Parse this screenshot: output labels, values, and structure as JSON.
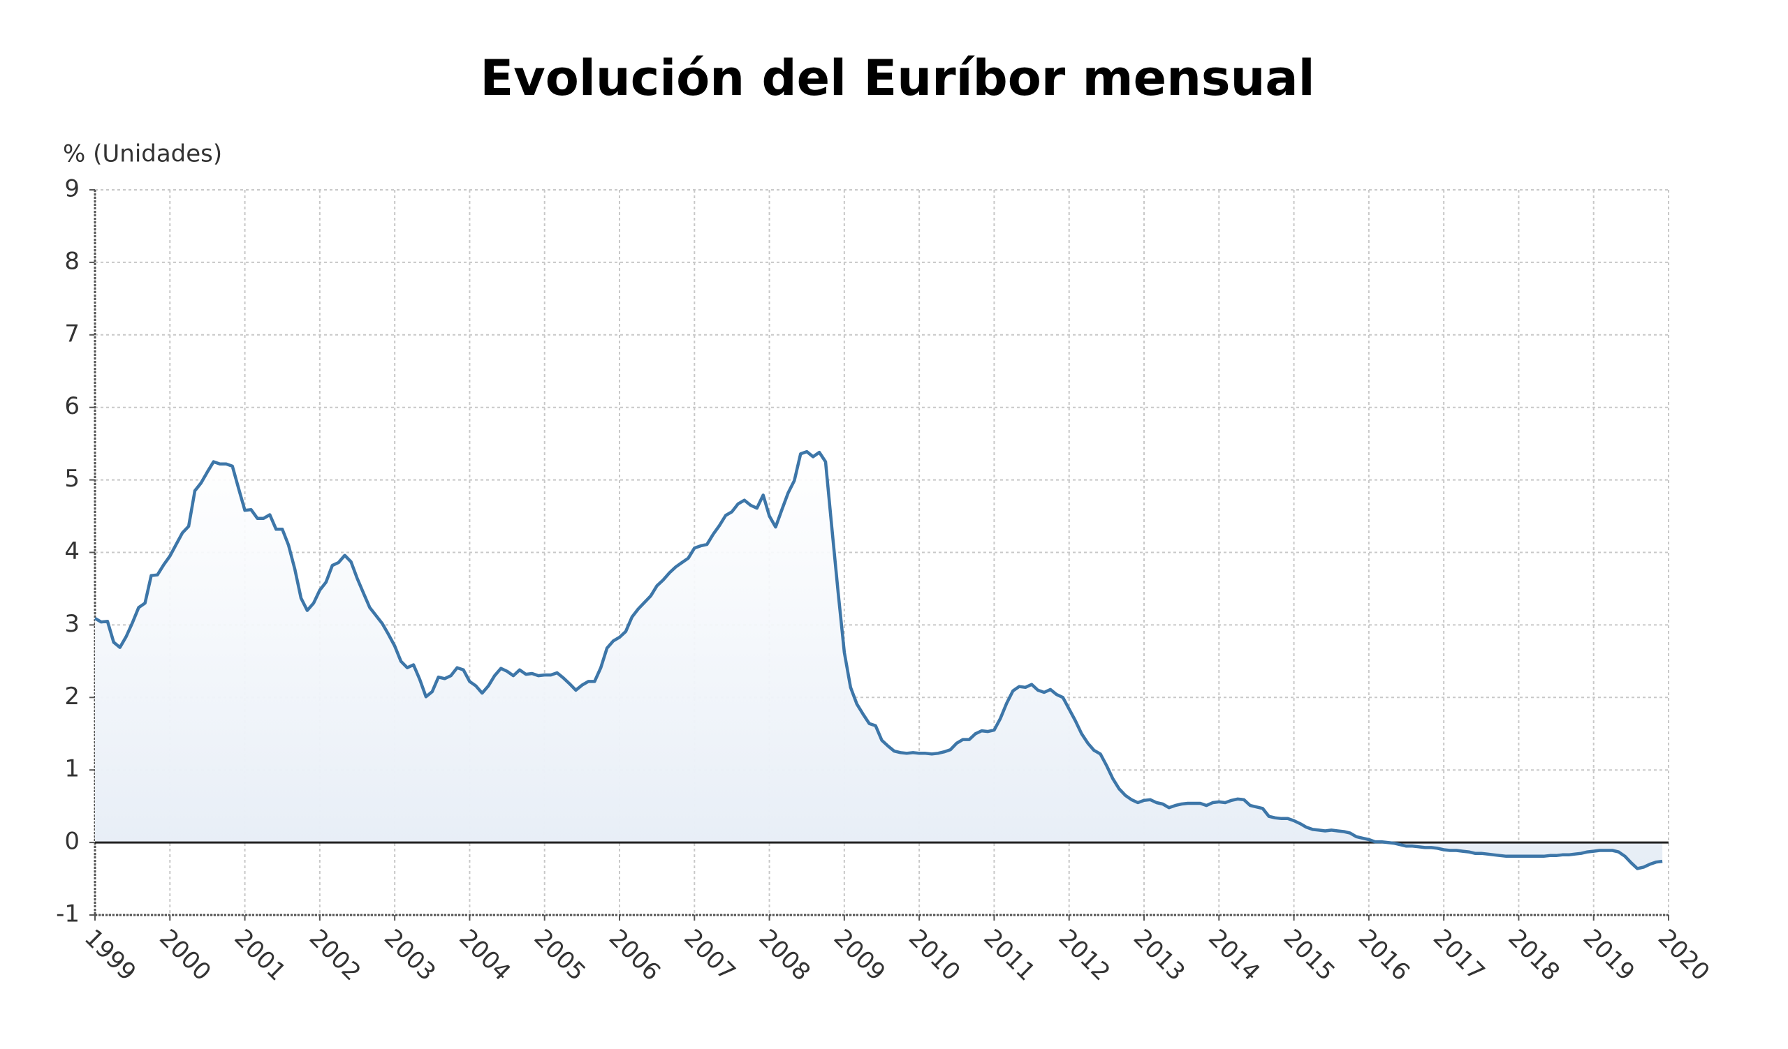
{
  "chart_data": {
    "type": "line",
    "title": "Evolución del Euríbor mensual",
    "y_label": "% (Unidades)",
    "color": "#3d76a8",
    "fill": true,
    "grid": true,
    "xlim": [
      1999,
      2020
    ],
    "xticks": [
      1999,
      2000,
      2001,
      2002,
      2003,
      2004,
      2005,
      2006,
      2007,
      2008,
      2009,
      2010,
      2011,
      2012,
      2013,
      2014,
      2015,
      2016,
      2017,
      2018,
      2019,
      2020
    ],
    "ylim": [
      -1,
      9
    ],
    "yticks": [
      -1,
      0,
      1,
      2,
      3,
      4,
      5,
      6,
      7,
      8,
      9
    ],
    "x": [
      1999,
      1999.083,
      1999.167,
      1999.25,
      1999.333,
      1999.417,
      1999.5,
      1999.583,
      1999.667,
      1999.75,
      1999.833,
      1999.917,
      2000,
      2000.083,
      2000.167,
      2000.25,
      2000.333,
      2000.417,
      2000.5,
      2000.583,
      2000.667,
      2000.75,
      2000.833,
      2000.917,
      2001,
      2001.083,
      2001.167,
      2001.25,
      2001.333,
      2001.417,
      2001.5,
      2001.583,
      2001.667,
      2001.75,
      2001.833,
      2001.917,
      2002,
      2002.083,
      2002.167,
      2002.25,
      2002.333,
      2002.417,
      2002.5,
      2002.583,
      2002.667,
      2002.75,
      2002.833,
      2002.917,
      2003,
      2003.083,
      2003.167,
      2003.25,
      2003.333,
      2003.417,
      2003.5,
      2003.583,
      2003.667,
      2003.75,
      2003.833,
      2003.917,
      2004,
      2004.083,
      2004.167,
      2004.25,
      2004.333,
      2004.417,
      2004.5,
      2004.583,
      2004.667,
      2004.75,
      2004.833,
      2004.917,
      2005,
      2005.083,
      2005.167,
      2005.25,
      2005.333,
      2005.417,
      2005.5,
      2005.583,
      2005.667,
      2005.75,
      2005.833,
      2005.917,
      2006,
      2006.083,
      2006.167,
      2006.25,
      2006.333,
      2006.417,
      2006.5,
      2006.583,
      2006.667,
      2006.75,
      2006.833,
      2006.917,
      2007,
      2007.083,
      2007.167,
      2007.25,
      2007.333,
      2007.417,
      2007.5,
      2007.583,
      2007.667,
      2007.75,
      2007.833,
      2007.917,
      2008,
      2008.083,
      2008.167,
      2008.25,
      2008.333,
      2008.417,
      2008.5,
      2008.583,
      2008.667,
      2008.75,
      2008.833,
      2008.917,
      2009,
      2009.083,
      2009.167,
      2009.25,
      2009.333,
      2009.417,
      2009.5,
      2009.583,
      2009.667,
      2009.75,
      2009.833,
      2009.917,
      2010,
      2010.083,
      2010.167,
      2010.25,
      2010.333,
      2010.417,
      2010.5,
      2010.583,
      2010.667,
      2010.75,
      2010.833,
      2010.917,
      2011,
      2011.083,
      2011.167,
      2011.25,
      2011.333,
      2011.417,
      2011.5,
      2011.583,
      2011.667,
      2011.75,
      2011.833,
      2011.917,
      2012,
      2012.083,
      2012.167,
      2012.25,
      2012.333,
      2012.417,
      2012.5,
      2012.583,
      2012.667,
      2012.75,
      2012.833,
      2012.917,
      2013,
      2013.083,
      2013.167,
      2013.25,
      2013.333,
      2013.417,
      2013.5,
      2013.583,
      2013.667,
      2013.75,
      2013.833,
      2013.917,
      2014,
      2014.083,
      2014.167,
      2014.25,
      2014.333,
      2014.417,
      2014.5,
      2014.583,
      2014.667,
      2014.75,
      2014.833,
      2014.917,
      2015,
      2015.083,
      2015.167,
      2015.25,
      2015.333,
      2015.417,
      2015.5,
      2015.583,
      2015.667,
      2015.75,
      2015.833,
      2015.917,
      2016,
      2016.083,
      2016.167,
      2016.25,
      2016.333,
      2016.417,
      2016.5,
      2016.583,
      2016.667,
      2016.75,
      2016.833,
      2016.917,
      2017,
      2017.083,
      2017.167,
      2017.25,
      2017.333,
      2017.417,
      2017.5,
      2017.583,
      2017.667,
      2017.75,
      2017.833,
      2017.917,
      2018,
      2018.083,
      2018.167,
      2018.25,
      2018.333,
      2018.417,
      2018.5,
      2018.583,
      2018.667,
      2018.75,
      2018.833,
      2018.917,
      2019,
      2019.083,
      2019.167,
      2019.25,
      2019.333,
      2019.417,
      2019.5,
      2019.583,
      2019.667,
      2019.75,
      2019.833,
      2019.917
    ],
    "values": [
      3.09,
      3.04,
      3.05,
      2.76,
      2.69,
      2.84,
      3.03,
      3.24,
      3.3,
      3.68,
      3.69,
      3.83,
      3.95,
      4.11,
      4.27,
      4.36,
      4.85,
      4.96,
      5.11,
      5.25,
      5.22,
      5.22,
      5.19,
      4.88,
      4.58,
      4.59,
      4.47,
      4.47,
      4.52,
      4.32,
      4.32,
      4.1,
      3.77,
      3.37,
      3.2,
      3.3,
      3.48,
      3.59,
      3.82,
      3.86,
      3.96,
      3.87,
      3.64,
      3.44,
      3.24,
      3.13,
      3.02,
      2.87,
      2.71,
      2.5,
      2.41,
      2.45,
      2.25,
      2.01,
      2.08,
      2.28,
      2.26,
      2.3,
      2.41,
      2.38,
      2.22,
      2.16,
      2.06,
      2.16,
      2.3,
      2.4,
      2.36,
      2.3,
      2.38,
      2.32,
      2.33,
      2.3,
      2.31,
      2.31,
      2.34,
      2.27,
      2.19,
      2.1,
      2.17,
      2.22,
      2.22,
      2.41,
      2.68,
      2.78,
      2.83,
      2.91,
      3.11,
      3.22,
      3.31,
      3.4,
      3.54,
      3.62,
      3.72,
      3.8,
      3.86,
      3.92,
      4.06,
      4.09,
      4.11,
      4.25,
      4.37,
      4.51,
      4.56,
      4.67,
      4.72,
      4.65,
      4.61,
      4.79,
      4.5,
      4.35,
      4.59,
      4.82,
      4.99,
      5.36,
      5.39,
      5.32,
      5.38,
      5.25,
      4.35,
      3.45,
      2.62,
      2.14,
      1.91,
      1.77,
      1.64,
      1.61,
      1.41,
      1.33,
      1.26,
      1.24,
      1.23,
      1.24,
      1.23,
      1.23,
      1.22,
      1.23,
      1.25,
      1.28,
      1.37,
      1.42,
      1.42,
      1.5,
      1.54,
      1.53,
      1.55,
      1.71,
      1.92,
      2.09,
      2.15,
      2.14,
      2.18,
      2.1,
      2.07,
      2.11,
      2.04,
      2.0,
      1.84,
      1.68,
      1.5,
      1.37,
      1.27,
      1.22,
      1.06,
      0.88,
      0.74,
      0.65,
      0.59,
      0.55,
      0.58,
      0.59,
      0.55,
      0.53,
      0.48,
      0.51,
      0.53,
      0.54,
      0.54,
      0.54,
      0.51,
      0.55,
      0.56,
      0.55,
      0.58,
      0.6,
      0.59,
      0.51,
      0.49,
      0.47,
      0.36,
      0.34,
      0.33,
      0.33,
      0.3,
      0.26,
      0.21,
      0.18,
      0.17,
      0.16,
      0.17,
      0.16,
      0.15,
      0.13,
      0.08,
      0.06,
      0.04,
      0.01,
      0.01,
      0.0,
      -0.01,
      -0.03,
      -0.05,
      -0.05,
      -0.06,
      -0.07,
      -0.07,
      -0.08,
      -0.1,
      -0.11,
      -0.11,
      -0.12,
      -0.13,
      -0.15,
      -0.15,
      -0.16,
      -0.17,
      -0.18,
      -0.19,
      -0.19,
      -0.19,
      -0.19,
      -0.19,
      -0.19,
      -0.19,
      -0.18,
      -0.18,
      -0.17,
      -0.17,
      -0.16,
      -0.15,
      -0.13,
      -0.12,
      -0.11,
      -0.11,
      -0.11,
      -0.13,
      -0.19,
      -0.28,
      -0.36,
      -0.34,
      -0.3,
      -0.27,
      -0.26
    ]
  }
}
